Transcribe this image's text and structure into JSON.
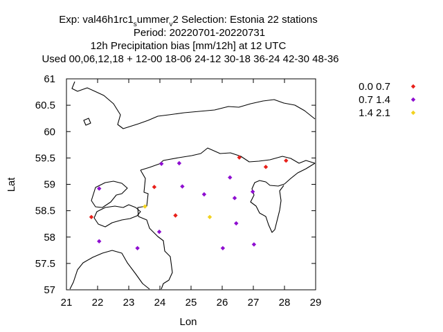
{
  "header": {
    "line1_prefix": "Exp: val46h1rc1",
    "line1_sub1": "s",
    "line1_mid": "ummer",
    "line1_sub2": "v",
    "line1_suffix": "2   Selection: Estonia      22 stations",
    "line2": "Period: 20220701-20220731",
    "line3": "12h Precipitation bias [mm/12h] at  12 UTC",
    "line4": "Used  00,06,12,18  + 12-00  18-06  24-12  30-18  36-24  42-30  48-36"
  },
  "chart_data": {
    "type": "scatter",
    "xlabel": "Lon",
    "ylabel": "Lat",
    "xlim": [
      21,
      29
    ],
    "ylim": [
      57,
      61
    ],
    "xticks": [
      "21",
      "22",
      "23",
      "24",
      "25",
      "26",
      "27",
      "28",
      "29"
    ],
    "yticks": [
      "57",
      "57.5",
      "58",
      "58.5",
      "59",
      "59.5",
      "60",
      "60.5",
      "61"
    ],
    "grid": false,
    "legend_position": "top-right, outside plot",
    "series": [
      {
        "name": "0.0 0.7",
        "color": "#e8201a",
        "points": [
          {
            "x": 21.8,
            "y": 58.38
          },
          {
            "x": 23.82,
            "y": 58.95
          },
          {
            "x": 24.5,
            "y": 58.41
          },
          {
            "x": 26.55,
            "y": 59.51
          },
          {
            "x": 27.4,
            "y": 59.33
          },
          {
            "x": 28.05,
            "y": 59.45
          }
        ]
      },
      {
        "name": "0.7 1.4",
        "color": "#8e0ed0",
        "points": [
          {
            "x": 22.05,
            "y": 58.92
          },
          {
            "x": 22.05,
            "y": 57.92
          },
          {
            "x": 23.28,
            "y": 57.79
          },
          {
            "x": 23.98,
            "y": 58.1
          },
          {
            "x": 24.05,
            "y": 59.39
          },
          {
            "x": 24.62,
            "y": 59.4
          },
          {
            "x": 24.72,
            "y": 58.96
          },
          {
            "x": 25.42,
            "y": 58.81
          },
          {
            "x": 26.25,
            "y": 59.13
          },
          {
            "x": 26.4,
            "y": 58.74
          },
          {
            "x": 26.45,
            "y": 58.26
          },
          {
            "x": 26.02,
            "y": 57.79
          },
          {
            "x": 26.98,
            "y": 58.86
          },
          {
            "x": 27.02,
            "y": 57.86
          }
        ]
      },
      {
        "name": "1.4 2.1",
        "color": "#f2d21e",
        "points": [
          {
            "x": 23.52,
            "y": 58.58
          },
          {
            "x": 25.6,
            "y": 58.38
          }
        ]
      }
    ]
  }
}
